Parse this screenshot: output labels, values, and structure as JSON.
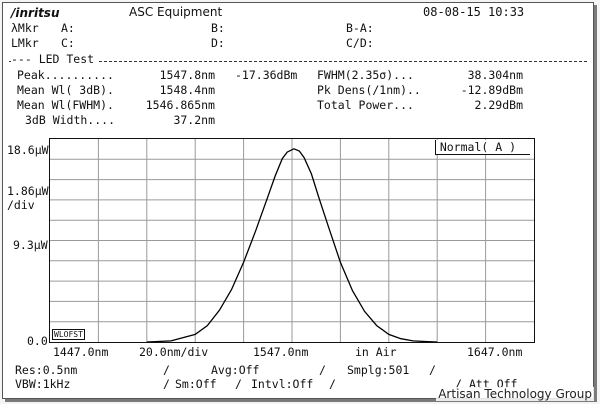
{
  "header": {
    "brand": "/inritsu",
    "model": "ASC Equipment",
    "datetime": "08-08-15 10:33"
  },
  "markers": {
    "lmkr_label": "λMkr",
    "a_label": "A:",
    "b_label": "B:",
    "ba_label": "B-A:",
    "lmkr2_label": "LMkr",
    "c_label": "C:",
    "d_label": "D:",
    "cd_label": "C/D:"
  },
  "test": {
    "title": "--- LED Test",
    "rows": [
      {
        "label": "Peak..........",
        "value": "1547.8nm",
        "extra": "-17.36dBm",
        "label2": "FWHM(2.35σ)...",
        "value2": "38.304nm"
      },
      {
        "label": "Mean Wl( 3dB).",
        "value": "1548.4nm",
        "extra": "",
        "label2": "Pk Dens(/1nm)..",
        "value2": "-12.89dBm"
      },
      {
        "label": "Mean Wl(FWHM).",
        "value": "1546.865nm",
        "extra": "",
        "label2": "Total Power...",
        "value2": "2.29dBm"
      },
      {
        "label": "3dB Width....",
        "value": "37.2nm",
        "extra": "",
        "label2": "",
        "value2": ""
      }
    ]
  },
  "plot": {
    "mode_label": "Normal( A )",
    "y_top": "18.6μW",
    "y_scale": "1.86μW",
    "y_scale_unit": "/div",
    "y_mid": "9.3μW",
    "y_zero": "0.0",
    "marker_tag": "WLOFST",
    "x_start": "1447.0nm",
    "x_div": "20.0nm/div",
    "x_center": "1547.0nm",
    "medium": "in Air",
    "x_end": "1647.0nm"
  },
  "chart_data": {
    "type": "line",
    "title": "",
    "xlabel": "",
    "ylabel": "",
    "xlim": [
      1447.0,
      1647.0
    ],
    "ylim": [
      0.0,
      18.6
    ],
    "grid": true,
    "series": [
      {
        "x": [
          1487,
          1497,
          1507,
          1512,
          1517,
          1522,
          1527,
          1532,
          1537,
          1540,
          1543,
          1545,
          1547.8,
          1550,
          1552,
          1555,
          1558,
          1562,
          1567,
          1572,
          1577,
          1582,
          1587,
          1592,
          1597,
          1602,
          1607
        ],
        "y": [
          0.0,
          0.1,
          0.7,
          1.5,
          2.9,
          4.8,
          7.3,
          10.2,
          13.3,
          15.2,
          16.8,
          17.4,
          17.7,
          17.5,
          16.9,
          15.4,
          13.3,
          10.6,
          7.3,
          4.7,
          2.8,
          1.5,
          0.7,
          0.3,
          0.1,
          0.05,
          0.0
        ]
      }
    ]
  },
  "settings": {
    "res": "Res:0.5nm",
    "avg": "Avg:Off",
    "smplg": "Smplg:501",
    "vbw": "VBW:1kHz",
    "sm": "Sm:Off",
    "intvl": "Intvl:Off",
    "att": "Att Off"
  },
  "watermark": "Artisan Technology Group"
}
